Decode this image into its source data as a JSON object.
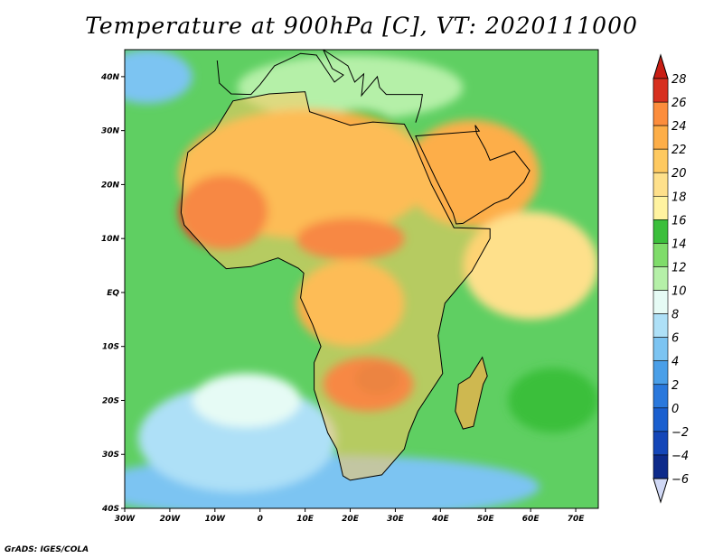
{
  "title": "Temperature at 900hPa [C], VT: 2020111000",
  "credit": "GrADS: IGES/COLA",
  "map": {
    "lon_range": [
      -30,
      75
    ],
    "lat_range": [
      -40,
      45
    ],
    "lon_ticks": [
      {
        "value": -30,
        "label": "30W"
      },
      {
        "value": -20,
        "label": "20W"
      },
      {
        "value": -10,
        "label": "10W"
      },
      {
        "value": 0,
        "label": "0"
      },
      {
        "value": 10,
        "label": "10E"
      },
      {
        "value": 20,
        "label": "20E"
      },
      {
        "value": 30,
        "label": "30E"
      },
      {
        "value": 40,
        "label": "40E"
      },
      {
        "value": 50,
        "label": "50E"
      },
      {
        "value": 60,
        "label": "60E"
      },
      {
        "value": 70,
        "label": "70E"
      }
    ],
    "lat_ticks": [
      {
        "value": 40,
        "label": "40N"
      },
      {
        "value": 30,
        "label": "30N"
      },
      {
        "value": 20,
        "label": "20N"
      },
      {
        "value": 10,
        "label": "10N"
      },
      {
        "value": 0,
        "label": "EQ"
      },
      {
        "value": -10,
        "label": "10S"
      },
      {
        "value": -20,
        "label": "20S"
      },
      {
        "value": -30,
        "label": "30S"
      },
      {
        "value": -40,
        "label": "40S"
      }
    ]
  },
  "colorbar": {
    "levels": [
      {
        "label": "28",
        "color": "#d7301f"
      },
      {
        "label": "26",
        "color": "#f03b20"
      },
      {
        "label": "24",
        "color": "#fc8d3c"
      },
      {
        "label": "22",
        "color": "#fdae48"
      },
      {
        "label": "20",
        "color": "#fec960"
      },
      {
        "label": "18",
        "color": "#fee08b"
      },
      {
        "label": "16",
        "color": "#fff3a0"
      },
      {
        "label": "14",
        "color": "#3bbf3b"
      },
      {
        "label": "12",
        "color": "#7fdc6a"
      },
      {
        "label": "10",
        "color": "#b5f0a8"
      },
      {
        "label": "8",
        "color": "#e6fbf5"
      },
      {
        "label": "6",
        "color": "#aee0f7"
      },
      {
        "label": "4",
        "color": "#7cc4f2"
      },
      {
        "label": "2",
        "color": "#4a9fe8"
      },
      {
        "label": "0",
        "color": "#2a78dc"
      },
      {
        "label": "−2",
        "color": "#1a5fcf"
      },
      {
        "label": "−4",
        "color": "#1446b8"
      },
      {
        "label": "−6",
        "color": "#0d2a8a"
      }
    ],
    "bottom_color": "#d0d8f5",
    "top_color": "#c81e14"
  },
  "field": {
    "background_color": "#5fcf62",
    "regions": [
      {
        "name": "southern-ocean-blue",
        "lon": 12,
        "lat": -36,
        "rx": 50,
        "ry": 6,
        "color": "#7cc4f2"
      },
      {
        "name": "south-atlantic-cool",
        "lon": -5,
        "lat": -27,
        "rx": 22,
        "ry": 10,
        "color": "#aee0f7"
      },
      {
        "name": "south-atlantic-pale",
        "lon": -3,
        "lat": -20,
        "rx": 12,
        "ry": 5,
        "color": "#e6fbf5"
      },
      {
        "name": "mediterranean-cool",
        "lon": 20,
        "lat": 38,
        "rx": 25,
        "ry": 6,
        "color": "#b5f0a8"
      },
      {
        "name": "libya-egypt-green",
        "lon": 22,
        "lat": 28,
        "rx": 10,
        "ry": 6,
        "color": "#3bbf3b"
      },
      {
        "name": "north-atlantic-blue",
        "lon": -25,
        "lat": 40,
        "rx": 10,
        "ry": 5,
        "color": "#7cc4f2"
      },
      {
        "name": "sahara-warm",
        "lon": 10,
        "lat": 22,
        "rx": 28,
        "ry": 12,
        "color": "#fdae48"
      },
      {
        "name": "arabia-warm",
        "lon": 47,
        "lat": 22,
        "rx": 15,
        "ry": 10,
        "color": "#fdae48"
      },
      {
        "name": "west-africa-hot",
        "lon": -8,
        "lat": 15,
        "rx": 10,
        "ry": 7,
        "color": "#f03b20"
      },
      {
        "name": "sahel-hot",
        "lon": 20,
        "lat": 10,
        "rx": 12,
        "ry": 4,
        "color": "#f03b20"
      },
      {
        "name": "congo-warm",
        "lon": 20,
        "lat": -2,
        "rx": 12,
        "ry": 8,
        "color": "#fdae48"
      },
      {
        "name": "southern-africa-hot",
        "lon": 24,
        "lat": -17,
        "rx": 10,
        "ry": 5,
        "color": "#f03b20"
      },
      {
        "name": "zambia-core",
        "lon": 26,
        "lat": -16,
        "rx": 5,
        "ry": 3,
        "color": "#d7301f"
      },
      {
        "name": "indian-ocean-green",
        "lon": 65,
        "lat": -20,
        "rx": 10,
        "ry": 6,
        "color": "#3bbf3b"
      },
      {
        "name": "somali-sea-pale",
        "lon": 60,
        "lat": 5,
        "rx": 15,
        "ry": 10,
        "color": "#fee08b"
      }
    ]
  }
}
